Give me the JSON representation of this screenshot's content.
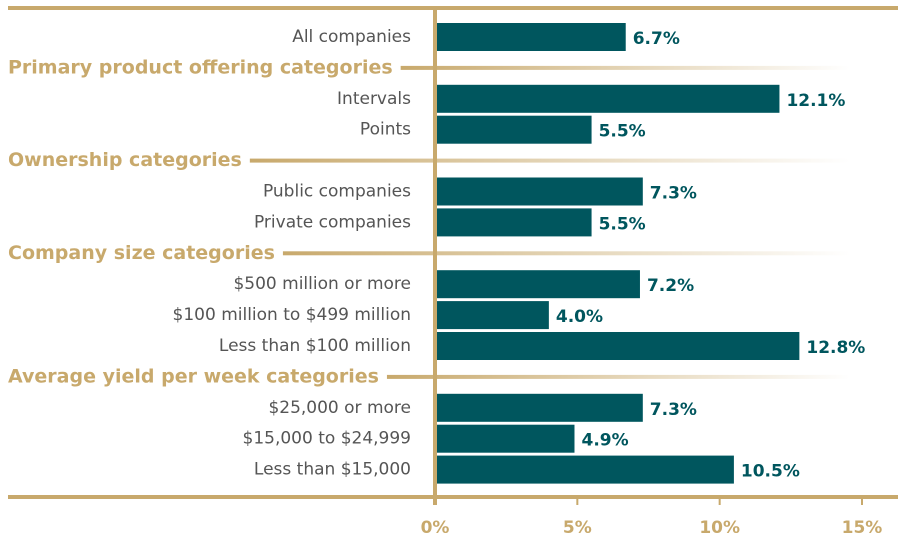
{
  "chart_data": {
    "type": "bar",
    "color": "#00565e",
    "accent": "#c8a96c",
    "sections": [
      {
        "categories": [
          "All companies"
        ],
        "values": [
          6.7
        ],
        "value_labels": [
          "6.7%"
        ]
      },
      {
        "name": "Primary product offering categories",
        "categories": [
          "Intervals",
          "Points"
        ],
        "values": [
          12.1,
          5.5
        ],
        "value_labels": [
          "12.1%",
          "5.5%"
        ]
      },
      {
        "name": "Ownership categories",
        "categories": [
          "Public companies",
          "Private companies"
        ],
        "values": [
          7.3,
          5.5
        ],
        "value_labels": [
          "7.3%",
          "5.5%"
        ]
      },
      {
        "name": "Company size categories",
        "categories": [
          "$500 million or more",
          "$100 million to $499 million",
          "Less than $100 million"
        ],
        "values": [
          7.2,
          4.0,
          12.8
        ],
        "value_labels": [
          "7.2%",
          "4.0%",
          "12.8%"
        ]
      },
      {
        "name": "Average yield per week categories",
        "categories": [
          "$25,000 or more",
          "$15,000 to $24,999",
          "Less than $15,000"
        ],
        "values": [
          7.3,
          4.9,
          10.5
        ],
        "value_labels": [
          "7.3%",
          "4.9%",
          "10.5%"
        ]
      }
    ],
    "xlim": [
      0,
      15
    ],
    "xticks": [
      {
        "value": 0,
        "label": "0%"
      },
      {
        "value": 5,
        "label": "5%"
      },
      {
        "value": 10,
        "label": "10%"
      },
      {
        "value": 15,
        "label": "15%"
      }
    ]
  }
}
